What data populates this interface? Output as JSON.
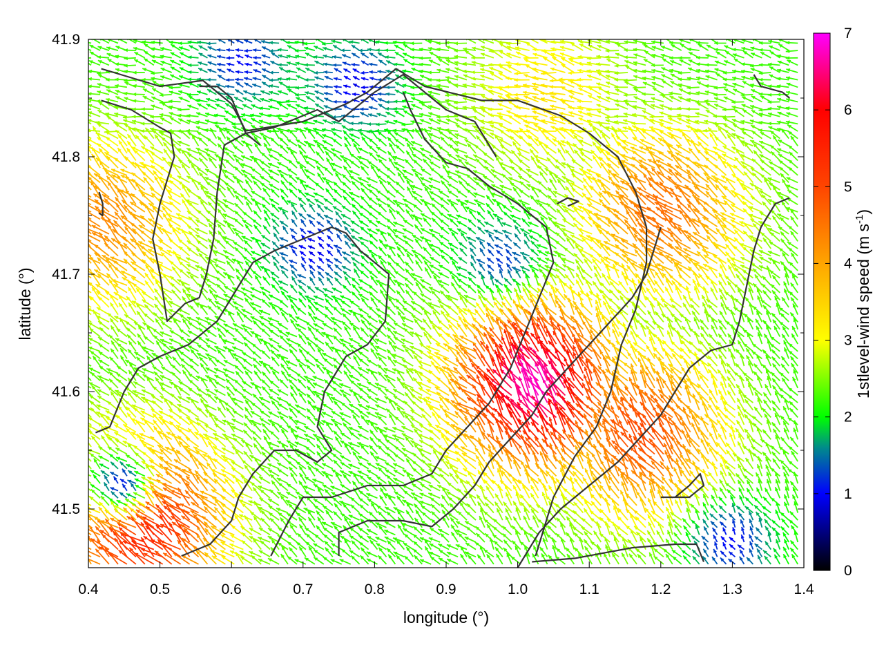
{
  "chart_data": {
    "type": "vector-field",
    "xlabel": "longitude (°)",
    "ylabel": "latitude (°)",
    "colorbar_label": "1stlevel-wind speed (m s",
    "colorbar_label_sup": "-1",
    "colorbar_label_end": ")",
    "xlim": [
      0.4,
      1.4
    ],
    "ylim": [
      41.45,
      41.9
    ],
    "x_ticks": [
      0.4,
      0.5,
      0.6,
      0.7,
      0.8,
      0.9,
      1.0,
      1.1,
      1.2,
      1.3,
      1.4
    ],
    "x_tick_labels": [
      "0.4",
      "0.5",
      "0.6",
      "0.7",
      "0.8",
      "0.9",
      "1.0",
      "1.1",
      "1.2",
      "1.3",
      "1.4"
    ],
    "y_ticks": [
      41.5,
      41.6,
      41.7,
      41.8,
      41.9
    ],
    "y_tick_labels": [
      "41.5",
      "41.6",
      "41.7",
      "41.8",
      "41.9"
    ],
    "color_range": [
      0,
      7
    ],
    "colorbar_ticks": [
      0,
      1,
      2,
      3,
      4,
      5,
      6,
      7
    ],
    "colorbar_tick_labels": [
      "0",
      "1",
      "2",
      "3",
      "4",
      "5",
      "6",
      "7"
    ],
    "colormap_stops": [
      {
        "v": 0,
        "c": "#000000"
      },
      {
        "v": 1,
        "c": "#0000ff"
      },
      {
        "v": 1.6,
        "c": "#008b8b"
      },
      {
        "v": 2,
        "c": "#00ff00"
      },
      {
        "v": 3,
        "c": "#ffff00"
      },
      {
        "v": 4,
        "c": "#ffa500"
      },
      {
        "v": 5,
        "c": "#ff4500"
      },
      {
        "v": 6,
        "c": "#ff0000"
      },
      {
        "v": 7,
        "c": "#ff00ff"
      }
    ],
    "wind_speed_field": {
      "description_of_hotspots": "approximate speed maxima in data units",
      "base_speed": 2.2,
      "hotspots": [
        {
          "lon": 1.03,
          "lat": 41.6,
          "speed": 6.8
        },
        {
          "lon": 0.48,
          "lat": 41.49,
          "speed": 6.2
        },
        {
          "lon": 1.18,
          "lat": 41.56,
          "speed": 5.0
        },
        {
          "lon": 1.21,
          "lat": 41.75,
          "speed": 4.6
        },
        {
          "lon": 0.43,
          "lat": 41.74,
          "speed": 4.3
        },
        {
          "lon": 1.05,
          "lat": 41.85,
          "speed": 3.3
        }
      ],
      "calm_areas": [
        {
          "lon": 0.72,
          "lat": 41.72,
          "speed": 0.9
        },
        {
          "lon": 0.62,
          "lat": 41.88,
          "speed": 1.0
        },
        {
          "lon": 0.78,
          "lat": 41.86,
          "speed": 0.9
        },
        {
          "lon": 0.98,
          "lat": 41.71,
          "speed": 1.2
        },
        {
          "lon": 1.3,
          "lat": 41.47,
          "speed": 1.0
        },
        {
          "lon": 0.45,
          "lat": 41.52,
          "speed": 1.1
        }
      ],
      "direction": "predominantly from the south-east and east (arrows pointing north-west / west)"
    },
    "grid": false,
    "contours": [
      [
        [
          0.418,
          41.875
        ],
        [
          0.5,
          41.86
        ],
        [
          0.56,
          41.865
        ],
        [
          0.6,
          41.845
        ],
        [
          0.62,
          41.822
        ],
        [
          0.7,
          41.83
        ],
        [
          0.76,
          41.845
        ],
        [
          0.79,
          41.855
        ],
        [
          0.83,
          41.875
        ],
        [
          0.87,
          41.86
        ],
        [
          0.95,
          41.848
        ],
        [
          1.0,
          41.848
        ],
        [
          1.06,
          41.835
        ],
        [
          1.1,
          41.82
        ],
        [
          1.14,
          41.8
        ],
        [
          1.165,
          41.77
        ],
        [
          1.18,
          41.74
        ],
        [
          1.18,
          41.71
        ],
        [
          1.165,
          41.67
        ],
        [
          1.145,
          41.64
        ],
        [
          1.13,
          41.6
        ],
        [
          1.11,
          41.57
        ],
        [
          1.08,
          41.545
        ],
        [
          1.05,
          41.51
        ],
        [
          1.025,
          41.46
        ]
      ],
      [
        [
          0.418,
          41.848
        ],
        [
          0.46,
          41.84
        ],
        [
          0.5,
          41.825
        ],
        [
          0.515,
          41.82
        ],
        [
          0.52,
          41.8
        ],
        [
          0.5,
          41.76
        ],
        [
          0.49,
          41.73
        ],
        [
          0.5,
          41.7
        ],
        [
          0.51,
          41.66
        ],
        [
          0.535,
          41.675
        ],
        [
          0.555,
          41.68
        ],
        [
          0.565,
          41.7
        ],
        [
          0.575,
          41.73
        ],
        [
          0.58,
          41.77
        ],
        [
          0.59,
          41.81
        ],
        [
          0.62,
          41.82
        ],
        [
          0.64,
          41.81
        ]
      ],
      [
        [
          0.555,
          41.86
        ],
        [
          0.58,
          41.86
        ],
        [
          0.6,
          41.85
        ],
        [
          0.62,
          41.82
        ],
        [
          0.66,
          41.825
        ],
        [
          0.72,
          41.84
        ],
        [
          0.75,
          41.83
        ],
        [
          0.8,
          41.855
        ],
        [
          0.84,
          41.87
        ],
        [
          0.87,
          41.855
        ],
        [
          0.9,
          41.84
        ],
        [
          0.94,
          41.83
        ],
        [
          0.97,
          41.8
        ]
      ],
      [
        [
          0.41,
          41.565
        ],
        [
          0.43,
          41.57
        ],
        [
          0.45,
          41.6
        ],
        [
          0.47,
          41.62
        ],
        [
          0.5,
          41.63
        ],
        [
          0.54,
          41.64
        ],
        [
          0.58,
          41.66
        ],
        [
          0.61,
          41.69
        ],
        [
          0.63,
          41.71
        ],
        [
          0.66,
          41.72
        ],
        [
          0.7,
          41.73
        ],
        [
          0.74,
          41.74
        ],
        [
          0.76,
          41.735
        ],
        [
          0.78,
          41.72
        ],
        [
          0.8,
          41.71
        ],
        [
          0.82,
          41.7
        ],
        [
          0.815,
          41.66
        ],
        [
          0.79,
          41.64
        ],
        [
          0.76,
          41.63
        ],
        [
          0.73,
          41.6
        ],
        [
          0.72,
          41.57
        ],
        [
          0.74,
          41.55
        ],
        [
          0.72,
          41.54
        ],
        [
          0.69,
          41.55
        ],
        [
          0.66,
          41.55
        ],
        [
          0.63,
          41.53
        ],
        [
          0.61,
          41.51
        ],
        [
          0.6,
          41.49
        ],
        [
          0.57,
          41.47
        ],
        [
          0.53,
          41.46
        ]
      ],
      [
        [
          0.655,
          41.46
        ],
        [
          0.68,
          41.49
        ],
        [
          0.7,
          41.51
        ],
        [
          0.74,
          41.51
        ],
        [
          0.79,
          41.52
        ],
        [
          0.84,
          41.52
        ],
        [
          0.88,
          41.53
        ],
        [
          0.9,
          41.55
        ],
        [
          0.93,
          41.57
        ],
        [
          0.96,
          41.59
        ],
        [
          0.99,
          41.62
        ],
        [
          1.01,
          41.65
        ],
        [
          1.03,
          41.68
        ],
        [
          1.05,
          41.71
        ],
        [
          1.04,
          41.74
        ],
        [
          1.0,
          41.76
        ],
        [
          0.96,
          41.775
        ],
        [
          0.93,
          41.79
        ],
        [
          0.9,
          41.795
        ],
        [
          0.87,
          41.815
        ],
        [
          0.85,
          41.84
        ],
        [
          0.84,
          41.855
        ]
      ],
      [
        [
          0.75,
          41.46
        ],
        [
          0.75,
          41.48
        ],
        [
          0.79,
          41.49
        ],
        [
          0.84,
          41.49
        ],
        [
          0.88,
          41.485
        ],
        [
          0.91,
          41.5
        ],
        [
          0.94,
          41.52
        ],
        [
          0.96,
          41.54
        ],
        [
          0.99,
          41.56
        ],
        [
          1.02,
          41.58
        ],
        [
          1.04,
          41.6
        ],
        [
          1.07,
          41.62
        ],
        [
          1.1,
          41.64
        ],
        [
          1.13,
          41.66
        ],
        [
          1.16,
          41.68
        ],
        [
          1.18,
          41.7
        ],
        [
          1.2,
          41.74
        ]
      ],
      [
        [
          1.0,
          41.45
        ],
        [
          1.03,
          41.48
        ],
        [
          1.06,
          41.5
        ],
        [
          1.1,
          41.52
        ],
        [
          1.14,
          41.54
        ],
        [
          1.17,
          41.56
        ],
        [
          1.2,
          41.58
        ],
        [
          1.22,
          41.6
        ],
        [
          1.24,
          41.62
        ],
        [
          1.27,
          41.635
        ],
        [
          1.3,
          41.64
        ],
        [
          1.31,
          41.66
        ],
        [
          1.32,
          41.69
        ],
        [
          1.33,
          41.72
        ],
        [
          1.34,
          41.74
        ],
        [
          1.36,
          41.76
        ],
        [
          1.38,
          41.765
        ]
      ],
      [
        [
          1.2,
          41.51
        ],
        [
          1.24,
          41.51
        ],
        [
          1.26,
          41.52
        ],
        [
          1.255,
          41.53
        ],
        [
          1.24,
          41.52
        ],
        [
          1.22,
          41.51
        ]
      ],
      [
        [
          1.02,
          41.455
        ],
        [
          1.08,
          41.458
        ],
        [
          1.16,
          41.467
        ],
        [
          1.22,
          41.47
        ],
        [
          1.25,
          41.47
        ],
        [
          1.26,
          41.455
        ]
      ],
      [
        [
          1.33,
          41.87
        ],
        [
          1.34,
          41.86
        ],
        [
          1.37,
          41.855
        ],
        [
          1.38,
          41.85
        ]
      ],
      [
        [
          1.055,
          41.76
        ],
        [
          1.07,
          41.765
        ],
        [
          1.085,
          41.762
        ],
        [
          1.07,
          41.758
        ]
      ],
      [
        [
          0.415,
          41.77
        ],
        [
          0.42,
          41.76
        ],
        [
          0.42,
          41.75
        ],
        [
          0.415,
          41.752
        ]
      ]
    ]
  }
}
